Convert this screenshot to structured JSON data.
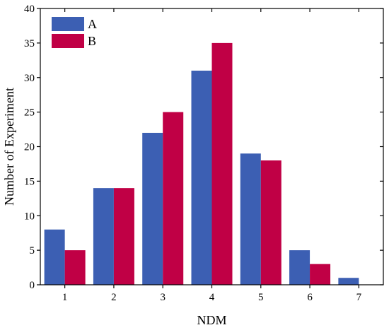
{
  "chart_data": {
    "type": "bar",
    "title": "",
    "xlabel": "NDM",
    "ylabel": "Number of Experiment",
    "categories": [
      "1",
      "2",
      "3",
      "4",
      "5",
      "6",
      "7"
    ],
    "series": [
      {
        "name": "A",
        "color": "#3c5fb3",
        "values": [
          8,
          14,
          22,
          31,
          19,
          5,
          1
        ]
      },
      {
        "name": "B",
        "color": "#c00045",
        "values": [
          5,
          14,
          25,
          35,
          18,
          3,
          0
        ]
      }
    ],
    "ylim": [
      0,
      40
    ],
    "yticks": [
      0,
      5,
      10,
      15,
      20,
      25,
      30,
      35,
      40
    ],
    "grid": false,
    "legend_position": "top-left"
  }
}
